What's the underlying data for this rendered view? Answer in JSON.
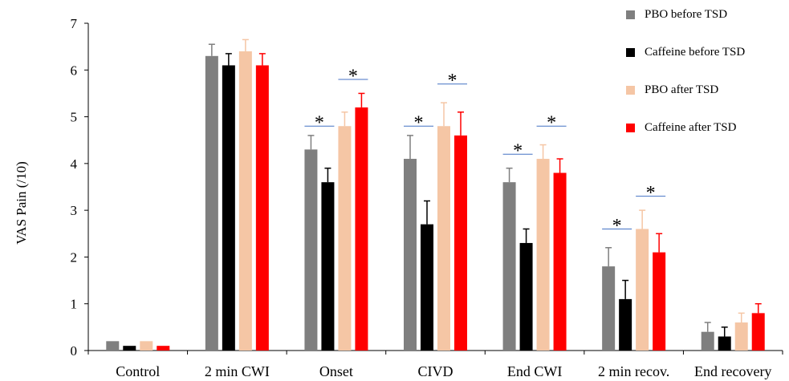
{
  "chart_data": {
    "type": "bar",
    "title": "",
    "xlabel": "",
    "ylabel": "VAS Pain (/10)",
    "ylim": [
      0,
      7
    ],
    "yticks": [
      0,
      1,
      2,
      3,
      4,
      5,
      6,
      7
    ],
    "grid": false,
    "legend_position": "top-right",
    "categories": [
      "Control",
      "2 min CWI",
      "Onset",
      "CIVD",
      "End CWI",
      "2 min recov.",
      "End recovery"
    ],
    "series": [
      {
        "name": "PBO before TSD",
        "color": "#7f7f7f",
        "values": [
          0.2,
          6.3,
          4.3,
          4.1,
          3.6,
          1.8,
          0.4
        ],
        "errors": [
          0,
          0.25,
          0.3,
          0.5,
          0.3,
          0.4,
          0.2
        ]
      },
      {
        "name": "Caffeine before TSD",
        "color": "#000000",
        "values": [
          0.1,
          6.1,
          3.6,
          2.7,
          2.3,
          1.1,
          0.3
        ],
        "errors": [
          0,
          0.25,
          0.3,
          0.5,
          0.3,
          0.4,
          0.2
        ]
      },
      {
        "name": "PBO after TSD",
        "color": "#f5c6a5",
        "values": [
          0.2,
          6.4,
          4.8,
          4.8,
          4.1,
          2.6,
          0.6
        ],
        "errors": [
          0,
          0.25,
          0.3,
          0.5,
          0.3,
          0.4,
          0.2
        ]
      },
      {
        "name": "Caffeine after TSD",
        "color": "#ff0000",
        "values": [
          0.1,
          6.1,
          5.2,
          4.6,
          3.8,
          2.1,
          0.8
        ],
        "errors": [
          0,
          0.25,
          0.3,
          0.5,
          0.3,
          0.4,
          0.2
        ]
      }
    ],
    "annotations": [
      {
        "category": "Onset",
        "pair": "before",
        "symbol": "*",
        "line_y": 4.8,
        "text_y": 5.0
      },
      {
        "category": "Onset",
        "pair": "after",
        "symbol": "*",
        "line_y": 5.8,
        "text_y": 6.0
      },
      {
        "category": "CIVD",
        "pair": "before",
        "symbol": "*",
        "line_y": 4.8,
        "text_y": 5.0
      },
      {
        "category": "CIVD",
        "pair": "after",
        "symbol": "*",
        "line_y": 5.7,
        "text_y": 5.9
      },
      {
        "category": "End CWI",
        "pair": "before",
        "symbol": "*",
        "line_y": 4.2,
        "text_y": 4.4
      },
      {
        "category": "End CWI",
        "pair": "after",
        "symbol": "*",
        "line_y": 4.8,
        "text_y": 5.0
      },
      {
        "category": "2 min recov.",
        "pair": "before",
        "symbol": "*",
        "line_y": 2.6,
        "text_y": 2.8
      },
      {
        "category": "2 min recov.",
        "pair": "after",
        "symbol": "*",
        "line_y": 3.3,
        "text_y": 3.5
      }
    ]
  }
}
